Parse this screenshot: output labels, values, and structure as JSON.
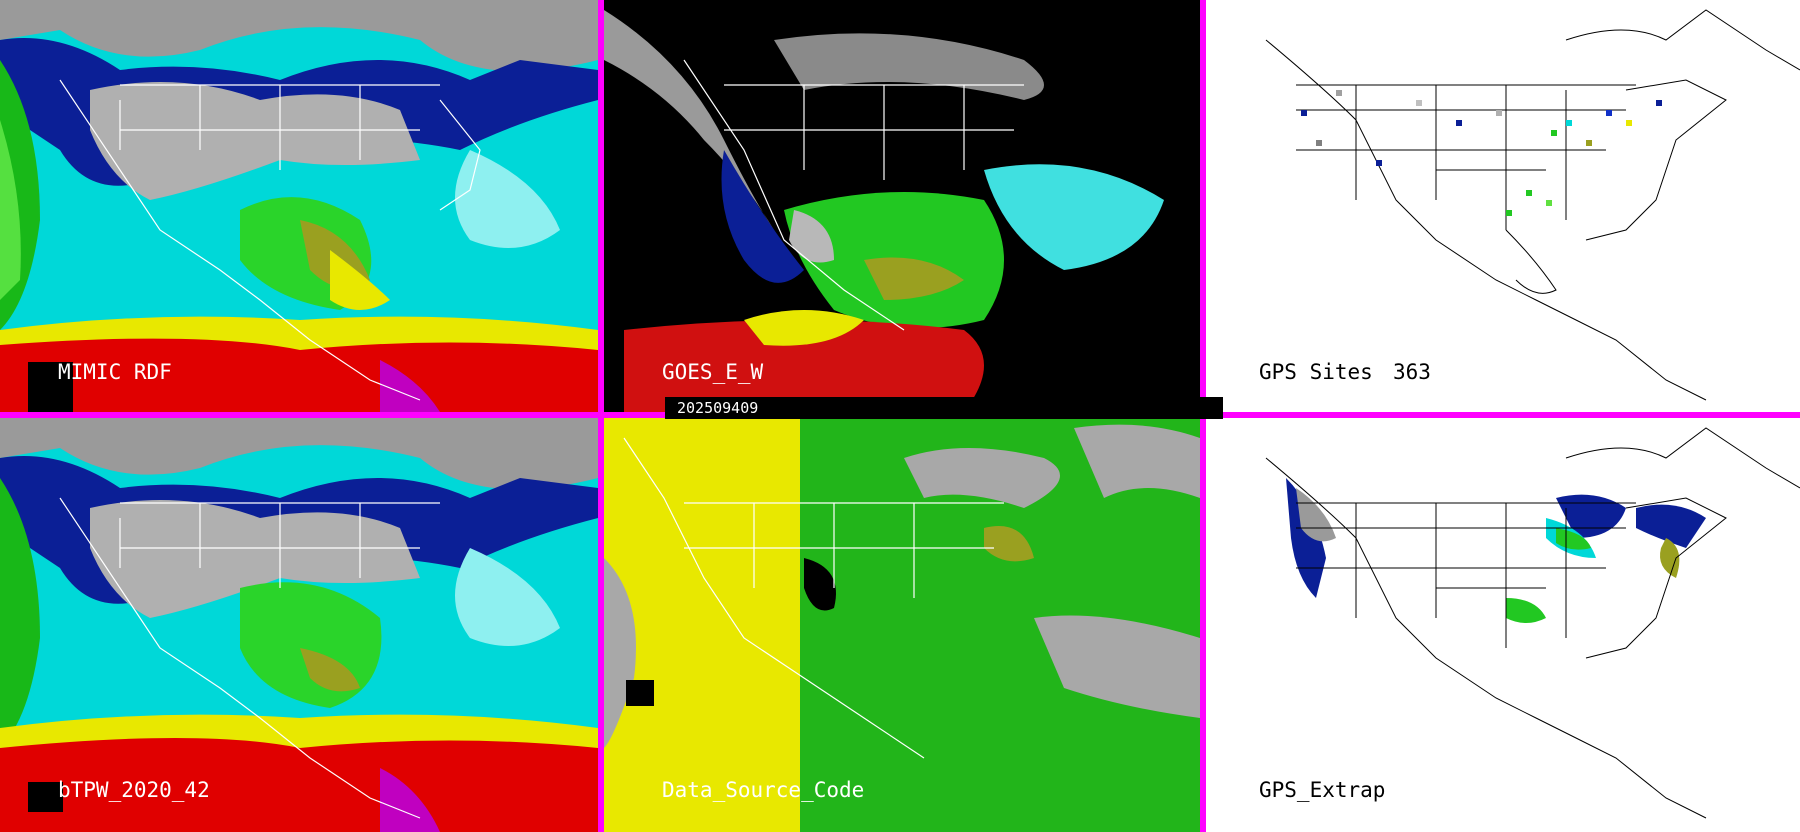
{
  "colors": {
    "divider": "#ff00ff",
    "tpw_scale": [
      "#b5b5b5",
      "#0a1a80",
      "#1030c8",
      "#00e0e0",
      "#20c020",
      "#60e040",
      "#a0a020",
      "#e8e800",
      "#e00000",
      "#a00030",
      "#c000c0"
    ],
    "source_yellow": "#e8e800",
    "source_green": "#22b51a",
    "source_gray": "#a8a8a8"
  },
  "panels": [
    {
      "id": "mimic",
      "label": "MIMIC RDF"
    },
    {
      "id": "goes",
      "label": "GOES_E_W"
    },
    {
      "id": "gps_sites",
      "label": "GPS Sites",
      "count": "363"
    },
    {
      "id": "btpw",
      "label": "bTPW_2020_42"
    },
    {
      "id": "source",
      "label": "Data_Source_Code"
    },
    {
      "id": "gps_extrap",
      "label": "GPS_Extrap"
    }
  ],
  "timestamp": "202509409"
}
